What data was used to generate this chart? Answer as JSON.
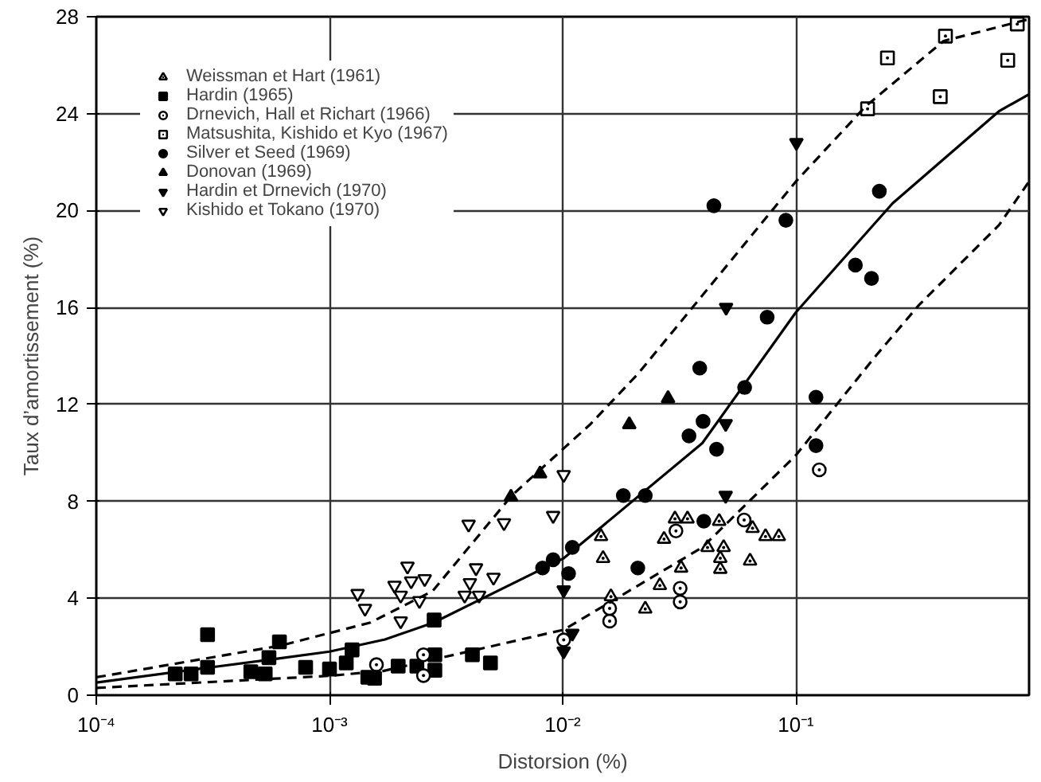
{
  "chart_data": {
    "type": "scatter",
    "xlabel": "Distorsion (%)",
    "ylabel": "Taux d’amortissement (%)",
    "log": "x",
    "grid": true,
    "legend": "top left",
    "xlim": [
      0.0001,
      1
    ],
    "ylim": [
      0,
      28
    ],
    "xticks": [
      {
        "value": 0.0001,
        "label": "10⁻⁴"
      },
      {
        "value": 0.001,
        "label": "10⁻³"
      },
      {
        "value": 0.01,
        "label": "10⁻²"
      },
      {
        "value": 0.1,
        "label": "10⁻¹"
      }
    ],
    "yticks": [
      0,
      4,
      8,
      12,
      16,
      20,
      24,
      28
    ],
    "series": [
      {
        "name": "Weissman et Hart (1961)",
        "color": "#000000",
        "marker": "triangle",
        "x": [
          0.0146,
          0.0149,
          0.0161,
          0.0226,
          0.0261,
          0.0272,
          0.0303,
          0.0343,
          0.0322,
          0.0469,
          0.0652,
          0.0741,
          0.0845,
          0.0418,
          0.049,
          0.0474,
          0.0474,
          0.0636
        ],
        "values": [
          6.55,
          5.65,
          4.07,
          3.56,
          4.53,
          6.44,
          7.28,
          7.28,
          5.25,
          7.18,
          6.89,
          6.55,
          6.55,
          6.1,
          6.1,
          5.65,
          5.2,
          5.54
        ]
      },
      {
        "name": "Hardin (1965)",
        "color": "#000000",
        "marker": "square",
        "x": [
          0.000218,
          0.000255,
          0.0003,
          0.0003,
          0.00046,
          0.00053,
          0.00055,
          0.00061,
          0.00079,
          0.001,
          0.00118,
          0.00125,
          0.00146,
          0.00156,
          0.00197,
          0.00281,
          0.00237,
          0.00283,
          0.00283,
          0.0041,
          0.0049
        ],
        "values": [
          0.88,
          0.88,
          1.15,
          2.5,
          0.97,
          0.88,
          1.55,
          2.2,
          1.15,
          1.08,
          1.33,
          1.87,
          0.74,
          0.7,
          1.2,
          3.1,
          1.2,
          1.67,
          1.03,
          1.67,
          1.33
        ]
      },
      {
        "name": "Drnevich, Hall et Richart (1966)",
        "color": "#000000",
        "marker": "circle",
        "x": [
          0.00159,
          0.00253,
          0.00253,
          0.0101,
          0.0159,
          0.0159,
          0.0306,
          0.0319,
          0.0319,
          0.06,
          0.126
        ],
        "values": [
          1.26,
          1.67,
          0.81,
          2.28,
          3.06,
          3.58,
          6.78,
          4.41,
          3.85,
          7.23,
          9.3
        ]
      },
      {
        "name": "Matsushita, Kishido et Kyo (1967)",
        "color": "#000000",
        "marker": "square",
        "x": [
          0.89,
          0.438,
          0.247,
          0.81,
          0.416,
          0.203
        ],
        "values": [
          27.7,
          27.2,
          26.3,
          26.2,
          24.7,
          24.2
        ]
      },
      {
        "name": "Silver et Seed (1969)",
        "color": "#000000",
        "marker": "circle",
        "x": [
          0.228,
          0.18,
          0.211,
          0.0445,
          0.0906,
          0.0753,
          0.0387,
          0.0603,
          0.122,
          0.04,
          0.0348,
          0.0457,
          0.122,
          0.0182,
          0.0226,
          0.0082,
          0.0091,
          0.011,
          0.0106,
          0.021,
          0.0403
        ],
        "values": [
          20.8,
          17.75,
          17.2,
          20.2,
          19.6,
          15.6,
          13.5,
          12.7,
          12.3,
          11.3,
          10.7,
          10.15,
          10.3,
          8.24,
          8.24,
          5.25,
          5.59,
          6.1,
          5.02,
          5.25,
          7.18
        ]
      },
      {
        "name": "Donovan (1969)",
        "color": "#000000",
        "marker": "triangle",
        "x": [
          0.0283,
          0.0193,
          0.008,
          0.006
        ],
        "values": [
          12.25,
          11.17,
          9.14,
          8.18
        ]
      },
      {
        "name": "Hardin et Drnevich (1970)",
        "color": "#000000",
        "marker": "triangle",
        "x": [
          0.1005,
          0.0502,
          0.05,
          0.05,
          0.0101,
          0.0101,
          0.011
        ],
        "values": [
          22.8,
          16.0,
          11.2,
          8.24,
          4.34,
          1.82,
          2.55
        ]
      },
      {
        "name": "Kishido et Tokano (1970)",
        "color": "#000000",
        "marker": "triangle",
        "x": [
          0.0101,
          0.0091,
          0.0056,
          0.00395,
          0.00425,
          0.00505,
          0.004,
          0.0038,
          0.00438,
          0.00216,
          0.00224,
          0.00256,
          0.0019,
          0.00202,
          0.00243,
          0.00202,
          0.00132,
          0.00142
        ],
        "values": [
          9.1,
          7.41,
          7.11,
          7.05,
          5.25,
          4.86,
          4.64,
          4.12,
          4.12,
          5.32,
          4.71,
          4.8,
          4.53,
          4.12,
          3.9,
          3.06,
          4.19,
          3.58
        ]
      },
      {
        "type": "line",
        "color": "#000000",
        "marker": "none",
        "line_style": "solid",
        "x": [
          0.0001,
          0.00031,
          0.00058,
          0.001,
          0.00173,
          0.0028,
          0.0101,
          0.0397,
          0.1,
          0.26,
          0.743,
          1
        ],
        "values": [
          0.52,
          1.15,
          1.49,
          1.8,
          2.3,
          3.0,
          5.65,
          10.4,
          15.8,
          20.3,
          24.1,
          24.8
        ]
      },
      {
        "type": "line",
        "color": "#000000",
        "marker": "none",
        "line_style": "dashed",
        "x": [
          0.0001,
          0.00062,
          0.0015,
          0.00277,
          0.00605,
          0.0132,
          0.0212,
          0.1,
          0.199,
          0.43,
          1
        ],
        "values": [
          0.74,
          2.05,
          3.0,
          4.3,
          8.24,
          11.2,
          13.3,
          21.2,
          24.3,
          27.0,
          27.9
        ]
      },
      {
        "type": "line",
        "color": "#000000",
        "marker": "none",
        "line_style": "dashed",
        "x": [
          0.0001,
          0.001,
          0.0017,
          0.0101,
          0.0397,
          0.1,
          0.22,
          0.337,
          0.743,
          1
        ],
        "values": [
          0.3,
          0.8,
          1.0,
          2.7,
          6.1,
          9.9,
          14.0,
          16.1,
          19.4,
          21.2
        ]
      }
    ]
  }
}
